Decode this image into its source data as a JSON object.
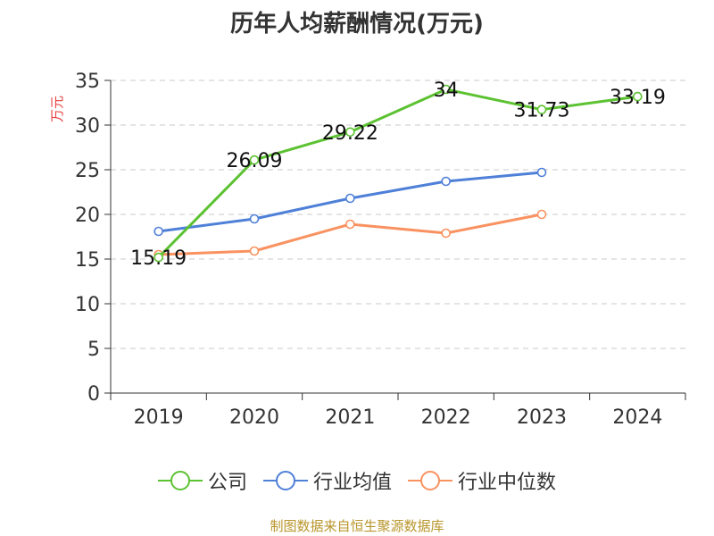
{
  "chart_data": {
    "type": "line",
    "title": "历年人均薪酬情况(万元)",
    "ylabel": "万元",
    "xlabel": "",
    "categories": [
      "2019",
      "2020",
      "2021",
      "2022",
      "2023",
      "2024"
    ],
    "ylim": [
      0,
      35
    ],
    "yticks": [
      0,
      5,
      10,
      15,
      20,
      25,
      30,
      35
    ],
    "grid": true,
    "legend_position": "bottom",
    "series": [
      {
        "name": "公司",
        "color": "#5cc232",
        "values": [
          15.19,
          26.09,
          29.22,
          34,
          31.73,
          33.19
        ],
        "labels": [
          "15.19",
          "26.09",
          "29.22",
          "34",
          "31.73",
          "33.19"
        ]
      },
      {
        "name": "行业均值",
        "color": "#4f80d8",
        "values": [
          18.1,
          19.5,
          21.8,
          23.7,
          24.7,
          null
        ]
      },
      {
        "name": "行业中位数",
        "color": "#f99260",
        "values": [
          15.5,
          15.9,
          18.9,
          17.9,
          20.0,
          null
        ]
      }
    ]
  },
  "source": "制图数据来自恒生聚源数据库"
}
